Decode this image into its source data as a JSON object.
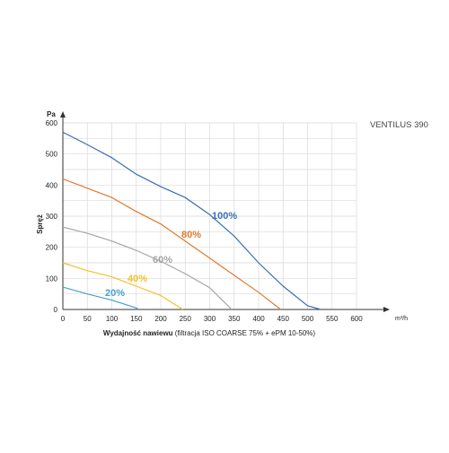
{
  "chart_data": {
    "type": "line",
    "title": "VENTILUS 390",
    "y_unit": "Pa",
    "y_label": "Spręż",
    "x_label_bold": "Wydajność nawiewu",
    "x_label_rest": "(filtracja ISO COARSE 75% + ePM 10-50%)",
    "x_unit": "m³/h",
    "xlim": [
      0,
      600
    ],
    "xticks": [
      0,
      50,
      100,
      150,
      200,
      250,
      300,
      350,
      400,
      450,
      500,
      550,
      600
    ],
    "ylim": [
      0,
      600
    ],
    "yticks": [
      0,
      100,
      200,
      300,
      400,
      500,
      600
    ],
    "y_minor_grid": [
      50,
      150,
      250,
      350,
      450,
      550
    ],
    "grid": true,
    "series": [
      {
        "name": "100%",
        "color": "#3a6fb6",
        "x": [
          0,
          50,
          100,
          150,
          200,
          250,
          300,
          350,
          400,
          450,
          500,
          527
        ],
        "values": [
          570,
          530,
          488,
          435,
          395,
          360,
          305,
          236,
          150,
          75,
          12,
          0
        ]
      },
      {
        "name": "80%",
        "color": "#e07a2e",
        "x": [
          0,
          50,
          100,
          150,
          200,
          250,
          300,
          350,
          400,
          445
        ],
        "values": [
          420,
          390,
          360,
          315,
          275,
          220,
          165,
          110,
          55,
          0
        ]
      },
      {
        "name": "60%",
        "color": "#a6a6a6",
        "x": [
          0,
          50,
          100,
          150,
          200,
          250,
          300,
          345
        ],
        "values": [
          265,
          245,
          220,
          190,
          155,
          115,
          70,
          0
        ]
      },
      {
        "name": "40%",
        "color": "#f2c12e",
        "x": [
          0,
          50,
          100,
          150,
          200,
          245
        ],
        "values": [
          150,
          125,
          105,
          75,
          45,
          0
        ]
      },
      {
        "name": "20%",
        "color": "#4a9fd4",
        "x": [
          0,
          50,
          100,
          150,
          155
        ],
        "values": [
          72,
          50,
          30,
          5,
          0
        ]
      }
    ]
  }
}
